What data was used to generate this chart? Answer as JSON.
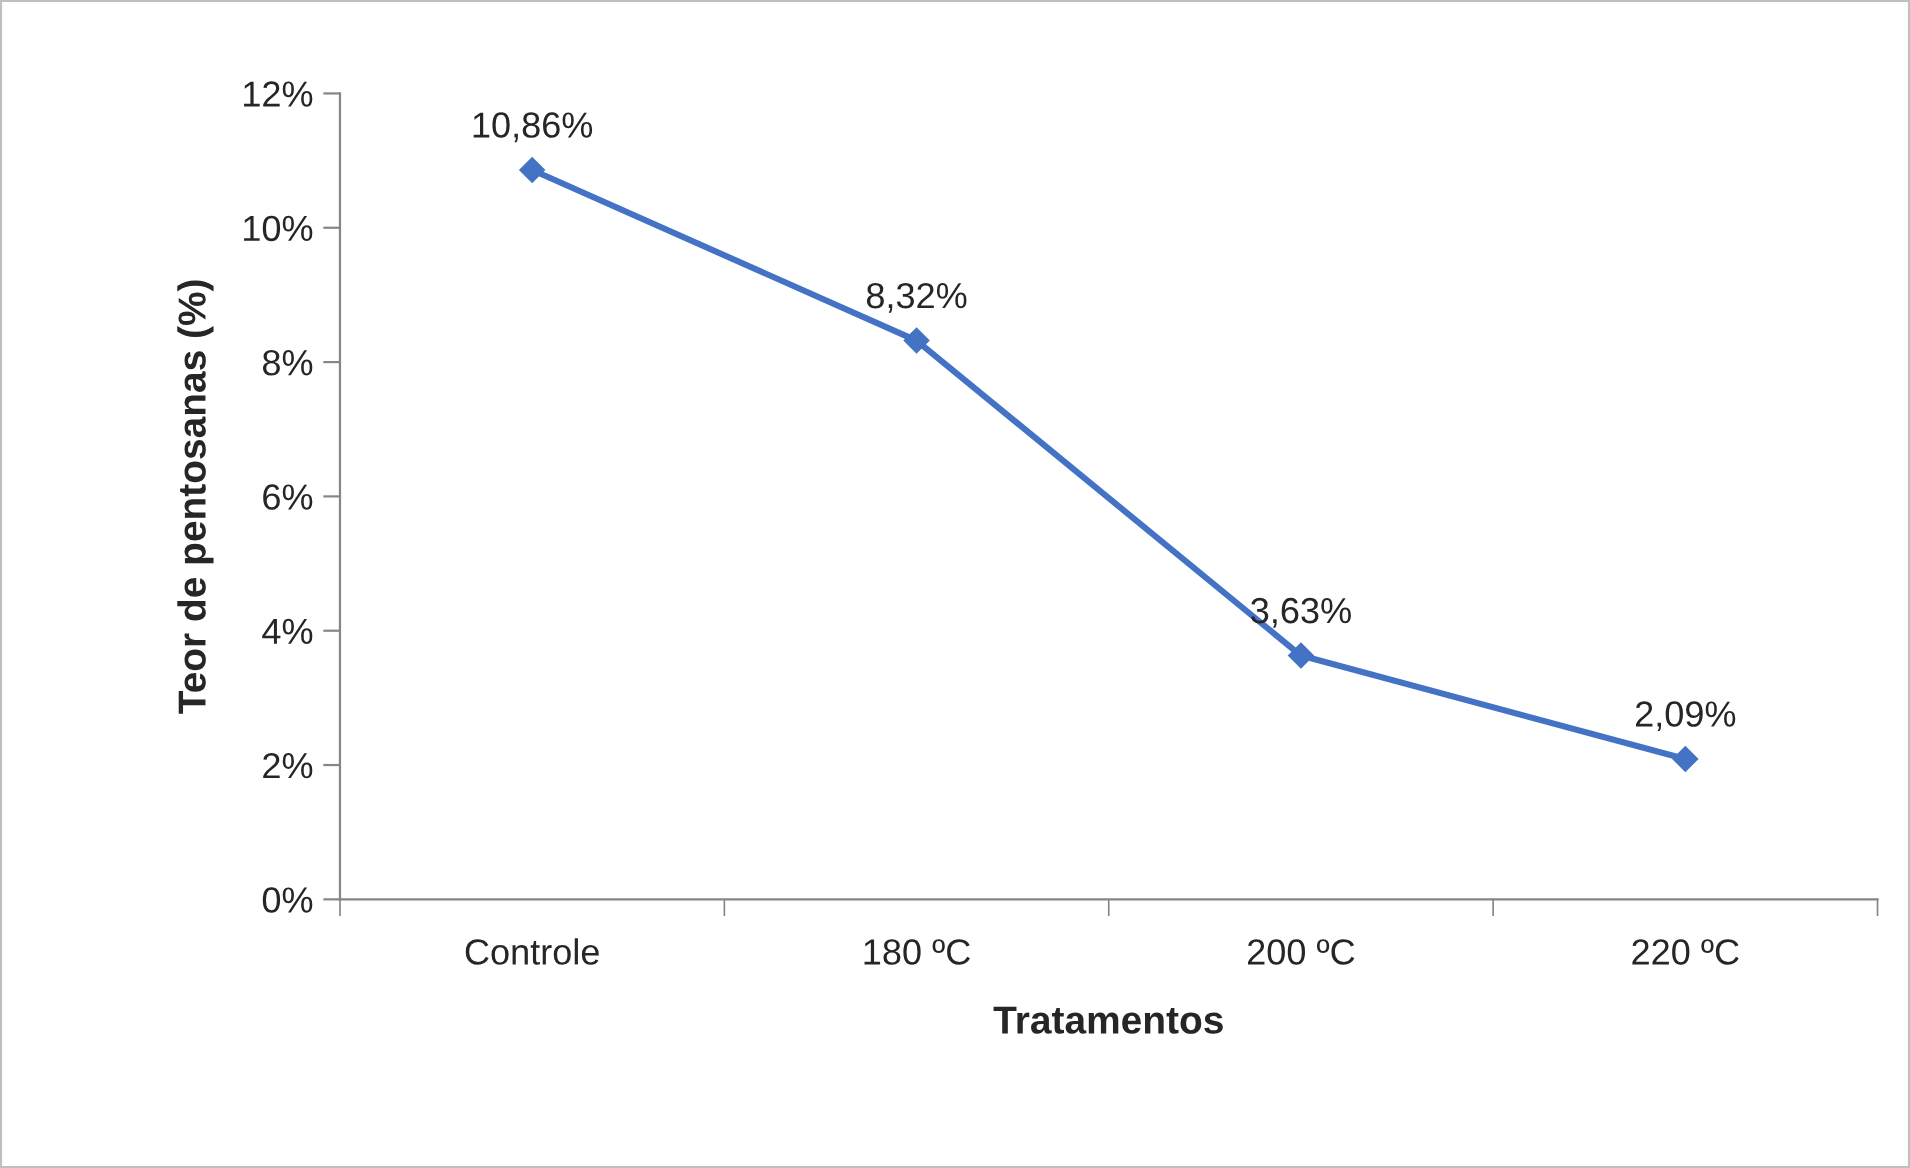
{
  "chart_data": {
    "type": "line",
    "xlabel": "Tratamentos",
    "ylabel": "Teor de pentosanas (%)",
    "categories": [
      "Controle",
      "180 ºC",
      "200 ºC",
      "220 ºC"
    ],
    "series": [
      {
        "color": "#4472c4",
        "values": [
          10.86,
          8.32,
          3.63,
          2.09
        ],
        "value_labels": [
          "10,86%",
          "8,32%",
          "3,63%",
          "2,09%"
        ]
      }
    ],
    "ylim": [
      0,
      12
    ],
    "yticks": [
      {
        "value": 0,
        "label": "0%"
      },
      {
        "value": 2,
        "label": "2%"
      },
      {
        "value": 4,
        "label": "4%"
      },
      {
        "value": 6,
        "label": "6%"
      },
      {
        "value": 8,
        "label": "8%"
      },
      {
        "value": 10,
        "label": "10%"
      },
      {
        "value": 12,
        "label": "12%"
      }
    ],
    "marker": "diamond",
    "line_style": "solid",
    "grid": false,
    "legend": false
  }
}
